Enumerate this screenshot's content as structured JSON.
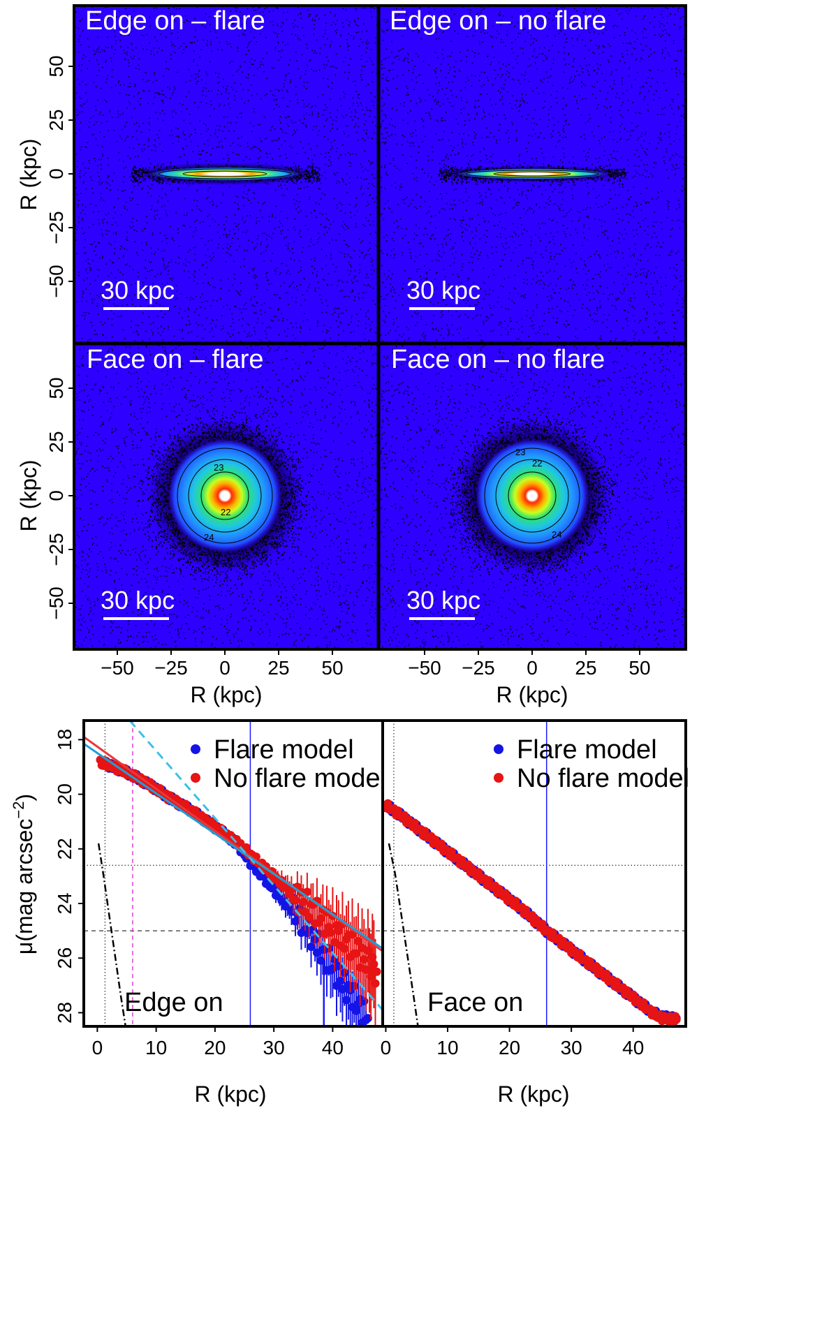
{
  "colors": {
    "background": "#2d00ff",
    "flare": "#1414e6",
    "no_flare": "#e61414",
    "fit_flare": "#1f9fd6",
    "fit_no_flare": "#e8383b",
    "dashed_steep": "#3cc0e8",
    "pink_line": "#e040d0",
    "blue_line": "#1a1aff"
  },
  "chart_data": [
    {
      "type": "heatmap",
      "panel": "top-left",
      "title": "Edge on – flare",
      "scale_bar_label": "30 kpc",
      "xlabel": "",
      "ylabel": "R (kpc)",
      "xlim": [
        -71,
        71
      ],
      "ylim": [
        -71,
        71
      ],
      "yticks": [
        50,
        25,
        0,
        -25,
        -50
      ],
      "ytick_labels": [
        "50",
        "25",
        "0",
        "−25",
        "−50"
      ],
      "shape": "edge-on disk",
      "extent_x_kpc": [
        -42,
        42
      ],
      "extent_y_kpc": [
        -3,
        3
      ]
    },
    {
      "type": "heatmap",
      "panel": "top-right",
      "title": "Edge on – no flare",
      "scale_bar_label": "30 kpc",
      "xlim": [
        -71,
        71
      ],
      "ylim": [
        -71,
        71
      ],
      "shape": "edge-on disk",
      "extent_x_kpc": [
        -42,
        42
      ],
      "extent_y_kpc": [
        -2,
        2
      ]
    },
    {
      "type": "heatmap",
      "panel": "bottom-left",
      "title": "Face on – flare",
      "scale_bar_label": "30 kpc",
      "xlabel": "R (kpc)",
      "ylabel": "R (kpc)",
      "xlim": [
        -71,
        71
      ],
      "ylim": [
        -71,
        71
      ],
      "xticks": [
        -50,
        -25,
        0,
        25,
        50
      ],
      "xtick_labels": [
        "−50",
        "−25",
        "0",
        "25",
        "50"
      ],
      "yticks": [
        50,
        25,
        0,
        -25,
        -50
      ],
      "ytick_labels": [
        "50",
        "25",
        "0",
        "−25",
        "−50"
      ],
      "contour_labels": [
        "23",
        "22",
        "24"
      ],
      "shape": "face-on disk",
      "radius_kpc": 25
    },
    {
      "type": "heatmap",
      "panel": "bottom-right",
      "title": "Face on – no flare",
      "scale_bar_label": "30 kpc",
      "xlabel": "R (kpc)",
      "xlim": [
        -71,
        71
      ],
      "ylim": [
        -71,
        71
      ],
      "xticks": [
        -50,
        -25,
        0,
        25,
        50
      ],
      "xtick_labels": [
        "−50",
        "−25",
        "0",
        "25",
        "50"
      ],
      "contour_labels": [
        "23",
        "22",
        "24"
      ],
      "shape": "face-on disk",
      "radius_kpc": 25
    },
    {
      "type": "scatter",
      "panel": "profile-edge-on",
      "label": "Edge on",
      "xlabel": "R (kpc)",
      "ylabel_main": "μ(mag arcsec",
      "ylabel_sup": "−2",
      "ylabel_close": ")",
      "xlim": [
        -2.3,
        48.5
      ],
      "ylim": [
        28.5,
        17.3
      ],
      "xticks": [
        0,
        10,
        20,
        30,
        40
      ],
      "xtick_labels": [
        "0",
        "10",
        "20",
        "30",
        "40"
      ],
      "yticks": [
        18,
        20,
        22,
        24,
        26,
        28
      ],
      "ytick_labels": [
        "18",
        "20",
        "22",
        "24",
        "26",
        "28"
      ],
      "legend": [
        "Flare model",
        "No flare model"
      ],
      "hlines_dotted": [
        22.6
      ],
      "hlines_dashed": [
        25.0
      ],
      "vline_dotted": 1.3,
      "vline_blue": 26.0,
      "vline_blue_short": 38.5,
      "vline_pink_dashed": 6.0,
      "series": [
        {
          "name": "Flare model",
          "x": [
            0.5,
            2,
            4,
            6,
            8,
            10,
            12,
            14,
            16,
            18,
            20,
            22,
            24,
            26,
            28,
            30,
            32,
            34,
            36,
            38,
            40,
            42,
            44,
            46
          ],
          "y": [
            18.8,
            18.95,
            19.1,
            19.3,
            19.55,
            19.8,
            20.1,
            20.35,
            20.6,
            20.9,
            21.2,
            21.5,
            21.9,
            22.5,
            23.0,
            23.5,
            24.0,
            24.4,
            25.0,
            25.7,
            26.3,
            27.0,
            27.6,
            28.2
          ]
        },
        {
          "name": "No flare model",
          "x": [
            0.5,
            2,
            4,
            6,
            8,
            10,
            12,
            14,
            16,
            18,
            20,
            22,
            24,
            26,
            28,
            30,
            32,
            34,
            36,
            38,
            40,
            42,
            44,
            46,
            47.5
          ],
          "y": [
            18.8,
            18.95,
            19.1,
            19.3,
            19.55,
            19.8,
            20.1,
            20.35,
            20.6,
            20.9,
            21.2,
            21.5,
            21.8,
            22.2,
            22.6,
            23.0,
            23.4,
            23.8,
            24.1,
            24.5,
            24.9,
            25.3,
            25.7,
            26.2,
            26.5
          ]
        }
      ],
      "fits": [
        {
          "name": "fit_no_flare",
          "style": "solid",
          "color": "#e8383b",
          "x": [
            -2.3,
            48.5
          ],
          "y": [
            17.9,
            25.75
          ]
        },
        {
          "name": "fit_flare",
          "style": "solid",
          "color": "#1f9fd6",
          "x": [
            -2.3,
            48.5
          ],
          "y": [
            18.15,
            25.65
          ]
        },
        {
          "name": "fit_steep",
          "style": "dashed",
          "color": "#3cc0e8",
          "x": [
            5.5,
            48.5
          ],
          "y": [
            17.3,
            27.9
          ]
        }
      ],
      "bulge_curve": {
        "x": [
          0.2,
          1.0,
          2.0,
          3.0,
          4.0,
          4.8
        ],
        "y": [
          21.8,
          22.9,
          24.4,
          25.9,
          27.4,
          28.5
        ]
      }
    },
    {
      "type": "scatter",
      "panel": "profile-face-on",
      "label": "Face on",
      "xlabel": "R (kpc)",
      "xlim": [
        -0.5,
        48.5
      ],
      "ylim": [
        28.5,
        17.3
      ],
      "xticks": [
        0,
        10,
        20,
        30,
        40
      ],
      "xtick_labels": [
        "0",
        "10",
        "20",
        "30",
        "40"
      ],
      "legend": [
        "Flare model",
        "No flare model"
      ],
      "hlines_dotted": [
        22.6
      ],
      "hlines_dashed": [
        25.0
      ],
      "vline_dotted": 1.3,
      "vline_blue": 26.0,
      "series": [
        {
          "name": "Flare model",
          "x": [
            0,
            2,
            4,
            6,
            8,
            10,
            12,
            14,
            16,
            18,
            20,
            22,
            24,
            26,
            28,
            30,
            32,
            34,
            36,
            38,
            40,
            42,
            44,
            46,
            47
          ],
          "y": [
            20.4,
            20.7,
            21.05,
            21.4,
            21.75,
            22.1,
            22.45,
            22.8,
            23.15,
            23.5,
            23.85,
            24.2,
            24.6,
            25.0,
            25.35,
            25.7,
            26.05,
            26.4,
            26.75,
            27.1,
            27.45,
            27.8,
            28.1,
            28.2,
            28.2
          ]
        },
        {
          "name": "No flare model",
          "x": [
            0,
            2,
            4,
            6,
            8,
            10,
            12,
            14,
            16,
            18,
            20,
            22,
            24,
            26,
            28,
            30,
            32,
            34,
            36,
            38,
            40,
            42,
            44,
            46,
            47
          ],
          "y": [
            20.4,
            20.7,
            21.05,
            21.4,
            21.75,
            22.1,
            22.45,
            22.8,
            23.15,
            23.5,
            23.85,
            24.2,
            24.6,
            25.0,
            25.35,
            25.7,
            26.05,
            26.4,
            26.75,
            27.1,
            27.45,
            27.8,
            28.15,
            28.25,
            28.25
          ]
        }
      ],
      "bulge_curve": {
        "x": [
          0.5,
          1.5,
          2.5,
          3.5,
          4.5,
          5.2
        ],
        "y": [
          21.8,
          22.9,
          24.4,
          25.9,
          27.4,
          28.5
        ]
      }
    }
  ]
}
